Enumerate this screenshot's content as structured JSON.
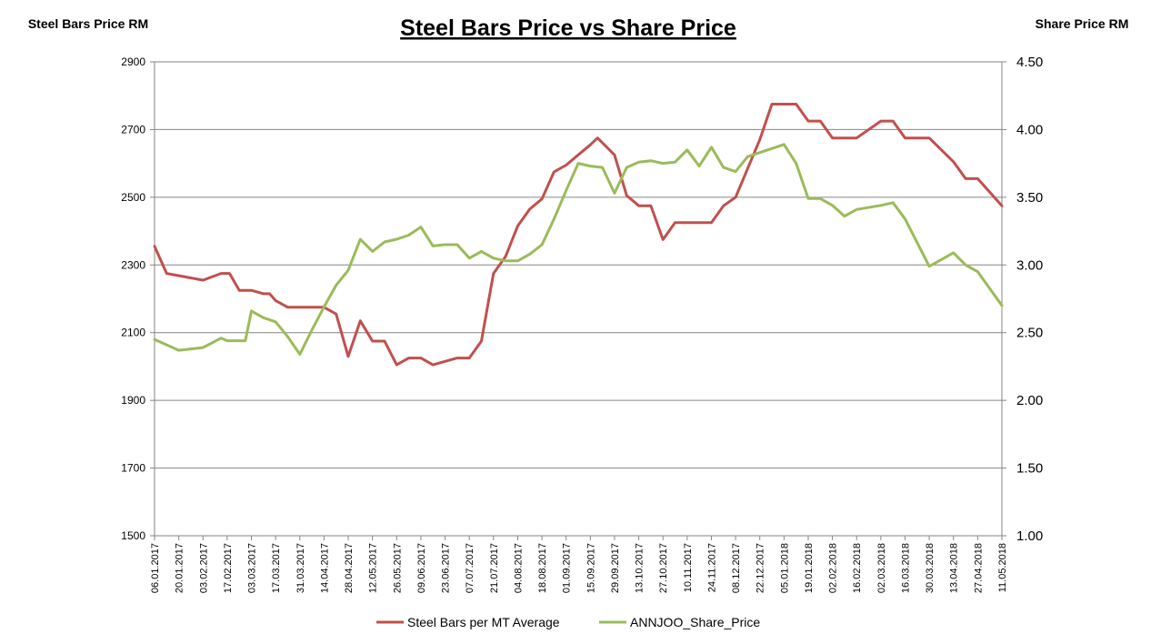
{
  "chart_data": {
    "type": "line",
    "title": "Steel Bars Price vs Share Price",
    "ylabel_left": "Steel Bars Price RM",
    "ylabel_right": "Share Price RM",
    "ylim_left": [
      1500,
      2900
    ],
    "yticks_left": [
      "2900",
      "2700",
      "2500",
      "2300",
      "2100",
      "1900",
      "1700",
      "1500"
    ],
    "ylim_right": [
      1.0,
      4.5
    ],
    "yticks_right": [
      "4.50",
      "4.00",
      "3.50",
      "3.00",
      "2.50",
      "2.00",
      "1.50",
      "1.00"
    ],
    "grid": true,
    "legend_position": "bottom",
    "x_tick_labels": [
      "06.01.2017",
      "20.01.2017",
      "03.02.2017",
      "17.02.2017",
      "03.03.2017",
      "17.03.2017",
      "31.03.2017",
      "14.04.2017",
      "28.04.2017",
      "12.05.2017",
      "26.05.2017",
      "09.06.2017",
      "23.06.2017",
      "07.07.2017",
      "21.07.2017",
      "04.08.2017",
      "18.08.2017",
      "01.09.2017",
      "15.09.2017",
      "29.09.2017",
      "13.10.2017",
      "27.10.2017",
      "10.11.2017",
      "24.11.2017",
      "08.12.2017",
      "22.12.2017",
      "05.01.2018",
      "19.01.2018",
      "02.02.2018",
      "16.02.2018",
      "02.03.2018",
      "16.03.2018",
      "30.03.2018",
      "13.04.2018",
      "27.04.2018",
      "11.05.2018"
    ],
    "series": [
      {
        "name": "Steel Bars per MT Average",
        "color": "#c0504d",
        "axis": "left",
        "points": [
          [
            0,
            2355
          ],
          [
            0.5,
            2275
          ],
          [
            2,
            2255
          ],
          [
            2.75,
            2275
          ],
          [
            3.1,
            2275
          ],
          [
            3.5,
            2225
          ],
          [
            4,
            2225
          ],
          [
            4.5,
            2215
          ],
          [
            4.75,
            2215
          ],
          [
            5,
            2195
          ],
          [
            5.5,
            2175
          ],
          [
            6,
            2175
          ],
          [
            6.5,
            2175
          ],
          [
            7,
            2175
          ],
          [
            7.5,
            2155
          ],
          [
            8,
            2030
          ],
          [
            8.5,
            2135
          ],
          [
            9,
            2075
          ],
          [
            9.5,
            2075
          ],
          [
            10,
            2005
          ],
          [
            10.5,
            2025
          ],
          [
            11,
            2025
          ],
          [
            11.5,
            2005
          ],
          [
            12,
            2015
          ],
          [
            12.5,
            2025
          ],
          [
            13,
            2025
          ],
          [
            13.5,
            2075
          ],
          [
            14,
            2275
          ],
          [
            14.5,
            2325
          ],
          [
            15,
            2415
          ],
          [
            15.5,
            2465
          ],
          [
            16,
            2495
          ],
          [
            16.5,
            2575
          ],
          [
            17,
            2595
          ],
          [
            17.5,
            2625
          ],
          [
            18,
            2655
          ],
          [
            18.3,
            2675
          ],
          [
            19,
            2625
          ],
          [
            19.5,
            2505
          ],
          [
            20,
            2475
          ],
          [
            20.5,
            2475
          ],
          [
            21,
            2375
          ],
          [
            21.5,
            2425
          ],
          [
            22,
            2425
          ],
          [
            22.5,
            2425
          ],
          [
            23,
            2425
          ],
          [
            23.5,
            2475
          ],
          [
            24,
            2500
          ],
          [
            24.5,
            2585
          ],
          [
            25,
            2670
          ],
          [
            25.5,
            2775
          ],
          [
            26,
            2775
          ],
          [
            26.5,
            2775
          ],
          [
            27,
            2725
          ],
          [
            27.5,
            2725
          ],
          [
            28,
            2675
          ],
          [
            28.5,
            2675
          ],
          [
            29,
            2675
          ],
          [
            30,
            2725
          ],
          [
            30.5,
            2725
          ],
          [
            31,
            2675
          ],
          [
            31.5,
            2675
          ],
          [
            32,
            2675
          ],
          [
            33,
            2605
          ],
          [
            33.5,
            2555
          ],
          [
            34,
            2555
          ],
          [
            35,
            2475
          ]
        ]
      },
      {
        "name": "ANNJOO_Share_Price",
        "color": "#9bbb59",
        "axis": "right",
        "points": [
          [
            0,
            2.45
          ],
          [
            0.5,
            2.41
          ],
          [
            1,
            2.37
          ],
          [
            2,
            2.39
          ],
          [
            2.75,
            2.46
          ],
          [
            3,
            2.44
          ],
          [
            3.75,
            2.44
          ],
          [
            4,
            2.66
          ],
          [
            4.5,
            2.61
          ],
          [
            5,
            2.58
          ],
          [
            5.5,
            2.47
          ],
          [
            6,
            2.34
          ],
          [
            6.5,
            2.52
          ],
          [
            7,
            2.69
          ],
          [
            7.5,
            2.85
          ],
          [
            8,
            2.96
          ],
          [
            8.5,
            3.19
          ],
          [
            9,
            3.1
          ],
          [
            9.5,
            3.17
          ],
          [
            10,
            3.19
          ],
          [
            10.5,
            3.22
          ],
          [
            11,
            3.28
          ],
          [
            11.5,
            3.14
          ],
          [
            12,
            3.15
          ],
          [
            12.5,
            3.15
          ],
          [
            13,
            3.05
          ],
          [
            13.5,
            3.1
          ],
          [
            14,
            3.05
          ],
          [
            14.5,
            3.03
          ],
          [
            15,
            3.03
          ],
          [
            15.5,
            3.08
          ],
          [
            16,
            3.15
          ],
          [
            16.5,
            3.34
          ],
          [
            17,
            3.55
          ],
          [
            17.5,
            3.75
          ],
          [
            18,
            3.73
          ],
          [
            18.5,
            3.72
          ],
          [
            19,
            3.53
          ],
          [
            19.5,
            3.72
          ],
          [
            20,
            3.76
          ],
          [
            20.5,
            3.77
          ],
          [
            21,
            3.75
          ],
          [
            21.5,
            3.76
          ],
          [
            22,
            3.85
          ],
          [
            22.5,
            3.73
          ],
          [
            23,
            3.87
          ],
          [
            23.5,
            3.72
          ],
          [
            24,
            3.69
          ],
          [
            24.5,
            3.8
          ],
          [
            25,
            3.83
          ],
          [
            25.5,
            3.86
          ],
          [
            26,
            3.89
          ],
          [
            26.5,
            3.75
          ],
          [
            27,
            3.49
          ],
          [
            27.5,
            3.49
          ],
          [
            28,
            3.44
          ],
          [
            28.5,
            3.36
          ],
          [
            29,
            3.41
          ],
          [
            30,
            3.44
          ],
          [
            30.5,
            3.46
          ],
          [
            31,
            3.34
          ],
          [
            32,
            2.99
          ],
          [
            33,
            3.09
          ],
          [
            33.5,
            3.0
          ],
          [
            34,
            2.95
          ],
          [
            35,
            2.7
          ]
        ]
      }
    ]
  }
}
